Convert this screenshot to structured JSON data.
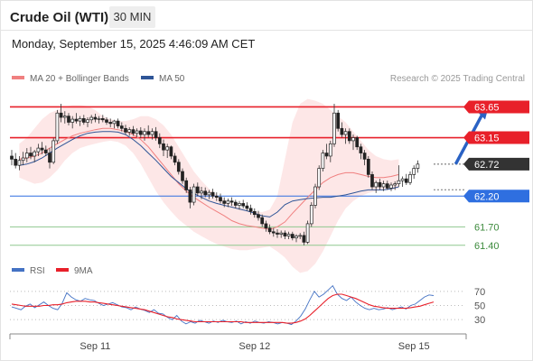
{
  "header": {
    "title": "Crude Oil (WTI)",
    "interval": "30 MIN",
    "datetime": "Monday, September 15, 2025 4:46:09 AM CET"
  },
  "legend": [
    {
      "label": "MA 20 + Bollinger Bands",
      "color": "#f08080"
    },
    {
      "label": "MA 50",
      "color": "#2f5597"
    }
  ],
  "credit": "Research © 2025 Trading Central",
  "chart_data": [
    {
      "type": "candlestick",
      "title": "",
      "ylim": [
        61.25,
        63.95
      ],
      "x_ticks": [
        {
          "index": 22,
          "label": "Sep 11"
        },
        {
          "index": 64,
          "label": "Sep 12"
        },
        {
          "index": 106,
          "label": "Sep 15"
        }
      ],
      "levels": [
        {
          "value": 63.65,
          "label": "63.65",
          "color": "#e8202a",
          "style": "resistance"
        },
        {
          "value": 63.15,
          "label": "63.15",
          "color": "#e8202a",
          "style": "resistance"
        },
        {
          "value": 62.72,
          "label": "62.72",
          "color": "#333333",
          "style": "last"
        },
        {
          "value": 62.2,
          "label": "62.20",
          "color": "#2f6fe0",
          "style": "pivot"
        },
        {
          "value": 61.7,
          "label": "61.70",
          "color": "#3c8a3c",
          "style": "support"
        },
        {
          "value": 61.4,
          "label": "61.40",
          "color": "#3c8a3c",
          "style": "support"
        }
      ],
      "projection": {
        "from_index": 117,
        "from": 62.72,
        "to_index": 125,
        "to": 63.65
      },
      "candles": [
        [
          62.85,
          62.95,
          62.7,
          62.8
        ],
        [
          62.8,
          62.9,
          62.65,
          62.7
        ],
        [
          62.7,
          62.85,
          62.62,
          62.78
        ],
        [
          62.78,
          62.92,
          62.7,
          62.82
        ],
        [
          62.82,
          62.98,
          62.75,
          62.9
        ],
        [
          62.9,
          63.0,
          62.8,
          62.85
        ],
        [
          62.85,
          62.95,
          62.75,
          62.92
        ],
        [
          62.92,
          63.05,
          62.85,
          62.98
        ],
        [
          62.98,
          63.08,
          62.88,
          62.95
        ],
        [
          62.95,
          63.02,
          62.85,
          62.9
        ],
        [
          62.9,
          62.98,
          62.65,
          62.75
        ],
        [
          62.75,
          63.15,
          62.72,
          63.1
        ],
        [
          63.1,
          63.6,
          63.05,
          63.55
        ],
        [
          63.55,
          63.7,
          63.4,
          63.48
        ],
        [
          63.48,
          63.58,
          63.38,
          63.5
        ],
        [
          63.5,
          63.55,
          63.35,
          63.4
        ],
        [
          63.4,
          63.5,
          63.3,
          63.45
        ],
        [
          63.45,
          63.55,
          63.38,
          63.42
        ],
        [
          63.42,
          63.5,
          63.34,
          63.46
        ],
        [
          63.46,
          63.52,
          63.36,
          63.4
        ],
        [
          63.4,
          63.48,
          63.32,
          63.44
        ],
        [
          63.44,
          63.52,
          63.38,
          63.48
        ],
        [
          63.48,
          63.54,
          63.4,
          63.45
        ],
        [
          63.45,
          63.5,
          63.38,
          63.46
        ],
        [
          63.46,
          63.52,
          63.4,
          63.44
        ],
        [
          63.44,
          63.48,
          63.36,
          63.4
        ],
        [
          63.4,
          63.46,
          63.32,
          63.38
        ],
        [
          63.38,
          63.44,
          63.3,
          63.42
        ],
        [
          63.42,
          63.46,
          63.3,
          63.34
        ],
        [
          63.34,
          63.4,
          63.25,
          63.3
        ],
        [
          63.3,
          63.36,
          63.2,
          63.24
        ],
        [
          63.24,
          63.32,
          63.18,
          63.28
        ],
        [
          63.28,
          63.34,
          63.18,
          63.22
        ],
        [
          63.22,
          63.3,
          63.16,
          63.26
        ],
        [
          63.26,
          63.32,
          63.14,
          63.2
        ],
        [
          63.2,
          63.3,
          63.1,
          63.25
        ],
        [
          63.25,
          63.35,
          63.15,
          63.2
        ],
        [
          63.2,
          63.3,
          63.12,
          63.25
        ],
        [
          63.25,
          63.32,
          63.1,
          63.15
        ],
        [
          63.15,
          63.22,
          62.98,
          63.05
        ],
        [
          63.05,
          63.12,
          62.85,
          62.95
        ],
        [
          62.95,
          63.05,
          62.82,
          63.0
        ],
        [
          63.0,
          63.02,
          62.8,
          62.85
        ],
        [
          62.85,
          62.9,
          62.7,
          62.75
        ],
        [
          62.75,
          62.8,
          62.55,
          62.6
        ],
        [
          62.6,
          62.65,
          62.4,
          62.45
        ],
        [
          62.45,
          62.5,
          62.25,
          62.3
        ],
        [
          62.3,
          62.35,
          62.0,
          62.1
        ],
        [
          62.1,
          62.4,
          62.05,
          62.35
        ],
        [
          62.35,
          62.42,
          62.2,
          62.25
        ],
        [
          62.25,
          62.35,
          62.15,
          62.28
        ],
        [
          62.28,
          62.34,
          62.18,
          62.22
        ],
        [
          62.22,
          62.3,
          62.15,
          62.26
        ],
        [
          62.26,
          62.32,
          62.16,
          62.2
        ],
        [
          62.2,
          62.26,
          62.12,
          62.18
        ],
        [
          62.18,
          62.24,
          62.08,
          62.12
        ],
        [
          62.12,
          62.18,
          62.02,
          62.08
        ],
        [
          62.08,
          62.16,
          62.02,
          62.12
        ],
        [
          62.12,
          62.18,
          62.04,
          62.1
        ],
        [
          62.1,
          62.14,
          62.0,
          62.05
        ],
        [
          62.05,
          62.12,
          61.98,
          62.08
        ],
        [
          62.08,
          62.14,
          62.0,
          62.04
        ],
        [
          62.04,
          62.1,
          61.96,
          62.0
        ],
        [
          62.0,
          62.06,
          61.9,
          61.95
        ],
        [
          61.95,
          62.0,
          61.85,
          61.9
        ],
        [
          61.9,
          61.96,
          61.8,
          61.85
        ],
        [
          61.85,
          61.9,
          61.7,
          61.75
        ],
        [
          61.75,
          61.8,
          61.62,
          61.68
        ],
        [
          61.68,
          61.74,
          61.58,
          61.62
        ],
        [
          61.62,
          61.68,
          61.54,
          61.6
        ],
        [
          61.6,
          61.66,
          61.52,
          61.58
        ],
        [
          61.58,
          61.64,
          61.52,
          61.6
        ],
        [
          61.6,
          61.64,
          61.5,
          61.55
        ],
        [
          61.55,
          61.62,
          61.5,
          61.58
        ],
        [
          61.58,
          61.62,
          61.48,
          61.52
        ],
        [
          61.52,
          61.58,
          61.45,
          61.55
        ],
        [
          61.55,
          61.6,
          61.5,
          61.56
        ],
        [
          61.56,
          61.62,
          61.4,
          61.45
        ],
        [
          61.45,
          61.8,
          61.42,
          61.75
        ],
        [
          61.75,
          62.1,
          61.7,
          62.05
        ],
        [
          62.05,
          62.4,
          62.0,
          62.35
        ],
        [
          62.35,
          62.7,
          62.3,
          62.65
        ],
        [
          62.65,
          62.95,
          62.6,
          62.9
        ],
        [
          62.9,
          63.05,
          62.8,
          62.85
        ],
        [
          62.85,
          63.1,
          62.75,
          63.05
        ],
        [
          63.05,
          63.7,
          63.0,
          63.55
        ],
        [
          63.55,
          63.6,
          63.25,
          63.3
        ],
        [
          63.3,
          63.4,
          63.15,
          63.2
        ],
        [
          63.2,
          63.3,
          63.05,
          63.25
        ],
        [
          63.25,
          63.3,
          63.05,
          63.1
        ],
        [
          63.1,
          63.2,
          62.95,
          63.15
        ],
        [
          63.15,
          63.18,
          62.95,
          63.0
        ],
        [
          63.0,
          63.05,
          62.8,
          62.9
        ],
        [
          62.9,
          62.95,
          62.7,
          62.8
        ],
        [
          62.8,
          62.85,
          62.5,
          62.55
        ],
        [
          62.55,
          62.6,
          62.3,
          62.35
        ],
        [
          62.35,
          62.45,
          62.25,
          62.42
        ],
        [
          62.42,
          62.48,
          62.3,
          62.35
        ],
        [
          62.35,
          62.45,
          62.28,
          62.4
        ],
        [
          62.4,
          62.45,
          62.3,
          62.33
        ],
        [
          62.33,
          62.42,
          62.28,
          62.38
        ],
        [
          62.38,
          62.44,
          62.3,
          62.4
        ],
        [
          62.4,
          62.7,
          62.35,
          62.45
        ],
        [
          62.45,
          62.52,
          62.35,
          62.48
        ],
        [
          62.48,
          62.56,
          62.38,
          62.42
        ],
        [
          62.42,
          62.6,
          62.38,
          62.55
        ],
        [
          62.55,
          62.7,
          62.48,
          62.65
        ],
        [
          62.65,
          62.78,
          62.58,
          62.72
        ]
      ],
      "ma20_base": 62.72,
      "ma20": [
        62.8,
        62.82,
        62.85,
        62.9,
        62.98,
        63.05,
        63.12,
        63.18,
        63.22,
        63.25,
        63.28,
        63.3,
        63.3,
        63.28,
        63.25,
        63.2,
        63.12,
        63.0,
        62.85,
        62.7,
        62.55,
        62.4,
        62.28,
        62.18,
        62.1,
        62.02,
        61.95,
        61.88,
        61.8,
        61.75,
        61.72,
        61.7,
        61.68,
        61.66,
        61.7,
        61.78,
        61.92,
        62.05,
        62.18,
        62.3,
        62.42,
        62.5,
        62.55,
        62.58,
        62.58,
        62.55,
        62.52,
        62.5,
        62.5,
        62.52,
        62.55
      ],
      "bb_upper": [
        63.05,
        63.15,
        63.3,
        63.45,
        63.55,
        63.6,
        63.65,
        63.68,
        63.68,
        63.66,
        63.6,
        63.5,
        63.45,
        63.42,
        63.42,
        63.45,
        63.5,
        63.5,
        63.45,
        63.35,
        63.2,
        63.0,
        62.8,
        62.6,
        62.45,
        62.32,
        62.22,
        62.14,
        62.08,
        62.02,
        61.98,
        61.95,
        61.94,
        61.98,
        62.2,
        62.8,
        63.4,
        63.7,
        63.78,
        63.75,
        63.7,
        63.6,
        63.5,
        63.4,
        63.25,
        63.1,
        62.95,
        62.85,
        62.8,
        62.78,
        62.8
      ],
      "bb_lower": [
        62.5,
        62.45,
        62.4,
        62.42,
        62.5,
        62.62,
        62.78,
        62.9,
        62.98,
        63.02,
        63.05,
        63.08,
        63.1,
        63.08,
        63.02,
        62.9,
        62.72,
        62.5,
        62.28,
        62.1,
        61.95,
        61.82,
        61.72,
        61.62,
        61.55,
        61.48,
        61.42,
        61.38,
        61.34,
        61.32,
        61.32,
        61.34,
        61.36,
        61.38,
        61.3,
        61.2,
        61.05,
        60.95,
        60.98,
        61.1,
        61.3,
        61.55,
        61.8,
        62.0,
        62.12,
        62.2,
        62.25,
        62.28,
        62.3,
        62.3,
        62.32
      ],
      "ma50": [
        62.7,
        62.72,
        62.76,
        62.82,
        62.9,
        62.98,
        63.05,
        63.12,
        63.18,
        63.22,
        63.24,
        63.25,
        63.25,
        63.24,
        63.2,
        63.12,
        63.02,
        62.9,
        62.78,
        62.65,
        62.52,
        62.42,
        62.32,
        62.24,
        62.18,
        62.12,
        62.08,
        62.05,
        62.02,
        61.99,
        61.96,
        61.92,
        61.88,
        61.86,
        61.94,
        62.06,
        62.12,
        62.14,
        62.16,
        62.17,
        62.18,
        62.18,
        62.2,
        62.22,
        62.25,
        62.28,
        62.3,
        62.3,
        62.3,
        62.32,
        62.35
      ]
    },
    {
      "type": "line",
      "title": "",
      "legend": [
        {
          "label": "RSI",
          "color": "#4472c4"
        },
        {
          "label": "9MA",
          "color": "#e8202a"
        }
      ],
      "ylim": [
        20,
        80
      ],
      "y_ticks": [
        70,
        50,
        30
      ],
      "series": [
        {
          "name": "RSI",
          "color": "#4472c4",
          "values": [
            48,
            46,
            44,
            49,
            52,
            47,
            51,
            55,
            50,
            46,
            44,
            53,
            68,
            62,
            58,
            56,
            60,
            58,
            57,
            53,
            50,
            52,
            54,
            51,
            48,
            47,
            44,
            48,
            45,
            43,
            40,
            44,
            39,
            38,
            33,
            30,
            36,
            28,
            24,
            27,
            25,
            29,
            27,
            25,
            28,
            26,
            29,
            27,
            26,
            28,
            24,
            27,
            25,
            28,
            26,
            25,
            27,
            26,
            24,
            26,
            25,
            23,
            28,
            35,
            45,
            58,
            70,
            62,
            66,
            72,
            78,
            66,
            60,
            57,
            62,
            55,
            50,
            46,
            44,
            46,
            44,
            45,
            47,
            44,
            46,
            48,
            45,
            50,
            52,
            57,
            62,
            65,
            64
          ]
        },
        {
          "name": "9MA",
          "color": "#e8202a",
          "values": [
            52,
            51,
            50,
            49,
            49,
            49,
            49,
            50,
            50,
            51,
            51,
            52,
            54,
            55,
            56,
            56,
            56,
            55,
            55,
            54,
            53,
            52,
            51,
            50,
            49,
            48,
            47,
            46,
            45,
            44,
            42,
            40,
            38,
            36,
            34,
            33,
            31,
            30,
            29,
            28,
            27,
            27,
            27,
            27,
            27,
            27,
            27,
            27,
            27,
            27,
            27,
            26,
            26,
            26,
            26,
            26,
            26,
            26,
            26,
            26,
            25,
            25,
            26,
            28,
            31,
            36,
            42,
            48,
            54,
            60,
            64,
            66,
            66,
            64,
            62,
            60,
            57,
            54,
            51,
            49,
            48,
            47,
            46,
            46,
            46,
            46,
            46,
            47,
            48,
            49,
            51,
            53,
            55
          ]
        }
      ]
    }
  ]
}
